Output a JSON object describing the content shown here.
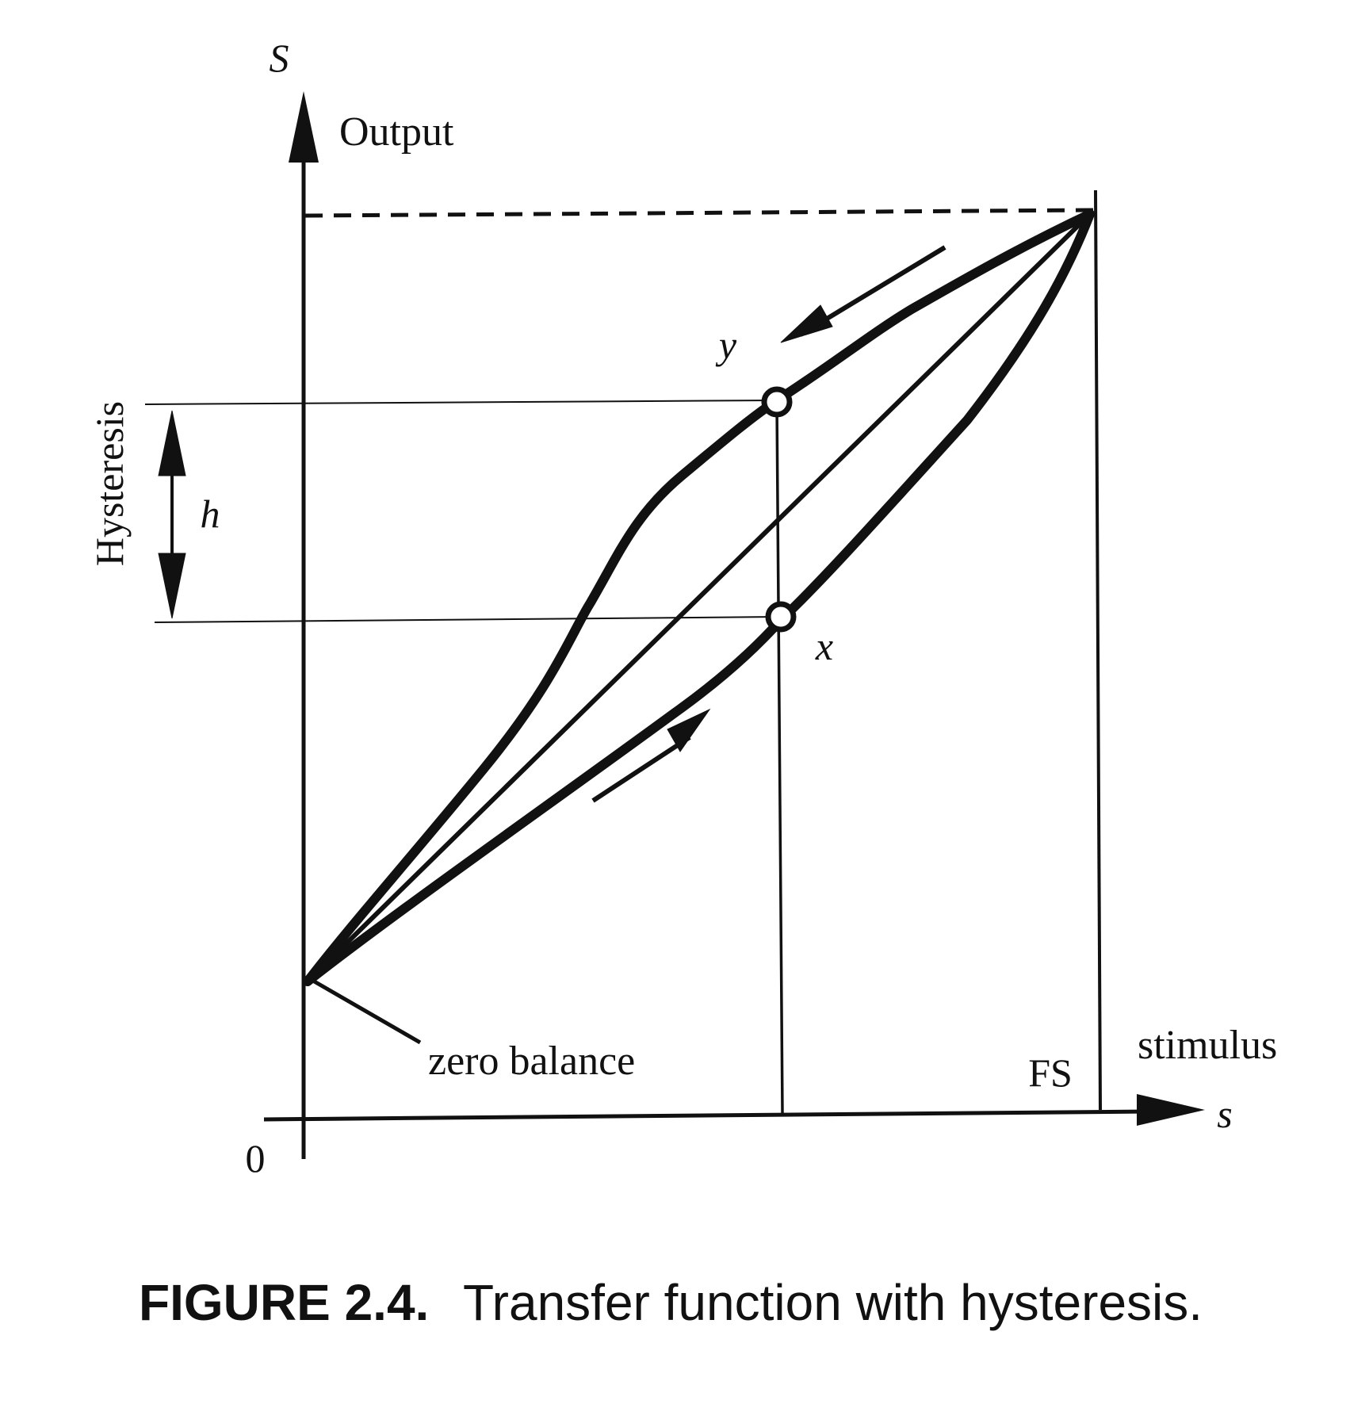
{
  "labels": {
    "y_symbol": "S",
    "y_axis_label": "Output",
    "hysteresis_label": "Hysteresis",
    "h_label": "h",
    "point_y": "y",
    "point_x": "x",
    "zero_balance": "zero balance",
    "fs_label": "FS",
    "x_axis_label": "stimulus",
    "x_symbol": "s",
    "origin": "0"
  },
  "caption": {
    "number": "FIGURE 2.4.",
    "text": "Transfer function with hysteresis."
  }
}
